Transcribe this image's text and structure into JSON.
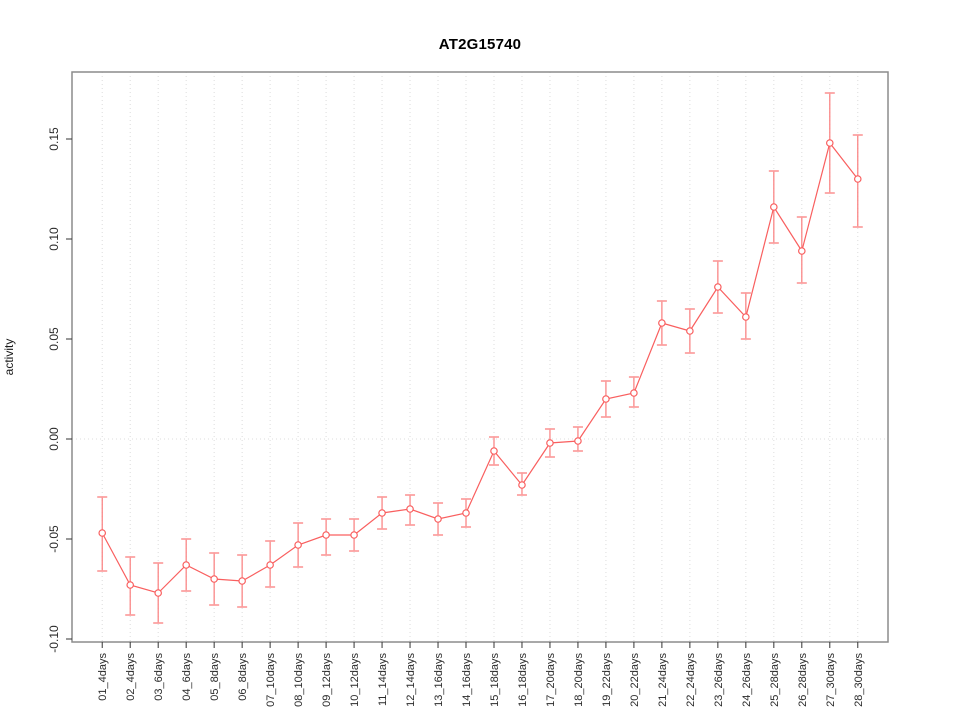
{
  "figure": {
    "background": "#ffffff"
  },
  "chart_data": {
    "type": "line",
    "title": "AT2G15740",
    "xlabel": "",
    "ylabel": "activity",
    "legend": "none",
    "grid": "vertical dotted line per category; horizontal dotted line at y=0",
    "categories": [
      "01_4days",
      "02_4days",
      "03_6days",
      "04_6days",
      "05_8days",
      "06_8days",
      "07_10days",
      "08_10days",
      "09_12days",
      "10_12days",
      "11_14days",
      "12_14days",
      "13_16days",
      "14_16days",
      "15_18days",
      "16_18days",
      "17_20days",
      "18_20days",
      "19_22days",
      "20_22days",
      "21_24days",
      "22_24days",
      "23_26days",
      "24_26days",
      "25_28days",
      "26_28days",
      "27_30days",
      "28_30days"
    ],
    "series": [
      {
        "name": "activity",
        "marker": "open-circle",
        "values": [
          -0.047,
          -0.073,
          -0.077,
          -0.063,
          -0.07,
          -0.071,
          -0.063,
          -0.053,
          -0.048,
          -0.048,
          -0.037,
          -0.035,
          -0.04,
          -0.037,
          -0.006,
          -0.023,
          -0.002,
          -0.001,
          0.02,
          0.023,
          0.058,
          0.054,
          0.076,
          0.061,
          0.116,
          0.094,
          0.148,
          0.13
        ],
        "lower": [
          -0.066,
          -0.088,
          -0.092,
          -0.076,
          -0.083,
          -0.084,
          -0.074,
          -0.064,
          -0.058,
          -0.056,
          -0.045,
          -0.043,
          -0.048,
          -0.044,
          -0.013,
          -0.028,
          -0.009,
          -0.006,
          0.011,
          0.016,
          0.047,
          0.043,
          0.063,
          0.05,
          0.098,
          0.078,
          0.123,
          0.106
        ],
        "upper": [
          -0.029,
          -0.059,
          -0.062,
          -0.05,
          -0.057,
          -0.058,
          -0.051,
          -0.042,
          -0.04,
          -0.04,
          -0.029,
          -0.028,
          -0.032,
          -0.03,
          0.001,
          -0.017,
          0.005,
          0.006,
          0.029,
          0.031,
          0.069,
          0.065,
          0.089,
          0.073,
          0.134,
          0.111,
          0.173,
          0.152
        ]
      }
    ],
    "ylim": [
      -0.1015,
      0.1835
    ],
    "yticks": [
      -0.1,
      -0.05,
      0.0,
      0.05,
      0.1,
      0.15
    ],
    "zero_line": 0,
    "colors": {
      "series": "#f95f5f",
      "error_bar": "#fa7c7c",
      "error_cap": "#fb9d9d",
      "marker_fill": "#ffffff",
      "frame": "#8c8c8c",
      "grid": "#dcdcdc",
      "tick": "#333333",
      "tick_text": "#2b2b2b",
      "title_text": "#000000"
    }
  }
}
